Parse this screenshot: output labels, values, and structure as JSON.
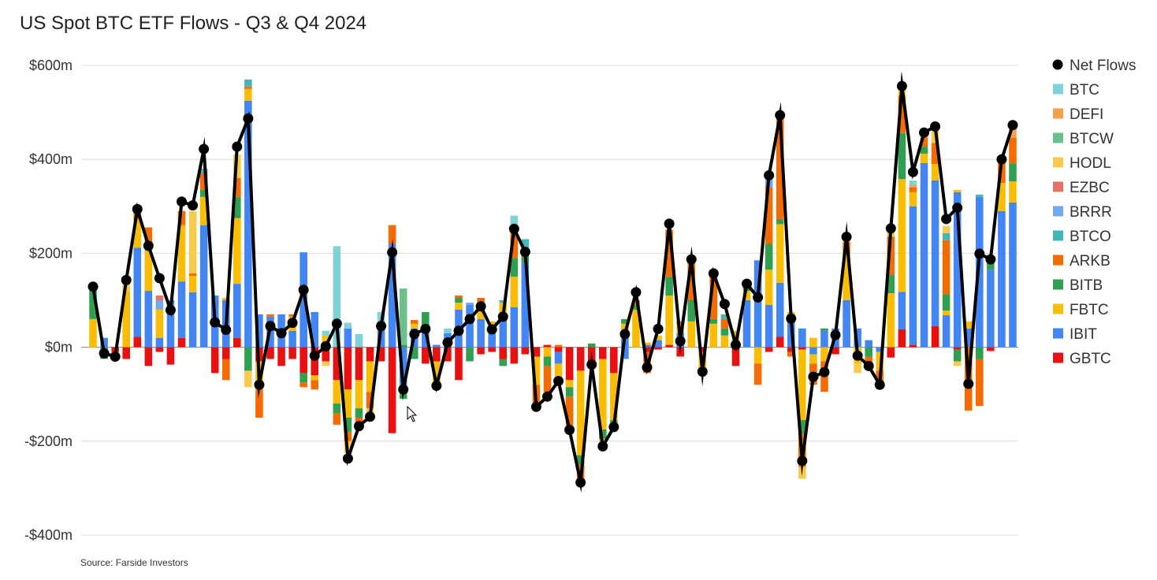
{
  "title": "US Spot BTC ETF Flows - Q3 & Q4 2024",
  "source": "Source: Farside Investors",
  "chart_data": {
    "type": "bar",
    "stacked": true,
    "overlay_line": "Net Flows",
    "ylim": [
      -400,
      600
    ],
    "yticks": [
      {
        "value": 600,
        "label": "$600m"
      },
      {
        "value": 400,
        "label": "$400m"
      },
      {
        "value": 200,
        "label": "$200m"
      },
      {
        "value": 0,
        "label": "$0m"
      },
      {
        "value": -200,
        "label": "-$200m"
      },
      {
        "value": -400,
        "label": "-$400m"
      }
    ],
    "legend_position": "right",
    "grid": true,
    "legend": [
      {
        "name": "Net Flows",
        "color": "#000000",
        "marker": "dot"
      },
      {
        "name": "BTC",
        "color": "#7fd3d6",
        "marker": "square"
      },
      {
        "name": "DEFI",
        "color": "#f3a14a",
        "marker": "square"
      },
      {
        "name": "BTCW",
        "color": "#6cc08b",
        "marker": "square"
      },
      {
        "name": "HODL",
        "color": "#f6ca4e",
        "marker": "square"
      },
      {
        "name": "EZBC",
        "color": "#e57368",
        "marker": "square"
      },
      {
        "name": "BRRR",
        "color": "#74a8ee",
        "marker": "square"
      },
      {
        "name": "BTCO",
        "color": "#43b6b8",
        "marker": "square"
      },
      {
        "name": "ARKB",
        "color": "#f56b00",
        "marker": "square"
      },
      {
        "name": "BITB",
        "color": "#2ea04f",
        "marker": "square"
      },
      {
        "name": "FBTC",
        "color": "#fbbc04",
        "marker": "square"
      },
      {
        "name": "IBIT",
        "color": "#4285f4",
        "marker": "square"
      },
      {
        "name": "GBTC",
        "color": "#ea1010",
        "marker": "square"
      }
    ],
    "days": [
      {
        "net": 129,
        "pos": {
          "BITB": 65,
          "FBTC": 60
        },
        "neg": {}
      },
      {
        "net": -13,
        "pos": {
          "IBIT": 20
        },
        "neg": {
          "BITB": -25
        }
      },
      {
        "net": -20,
        "pos": {},
        "neg": {
          "GBTC": -10,
          "ARKB": -10
        }
      },
      {
        "net": 143,
        "pos": {
          "FBTC": 120,
          "HODL": 30
        },
        "neg": {
          "GBTC": -25
        }
      },
      {
        "net": 294,
        "pos": {
          "GBTC": 22,
          "IBIT": 190,
          "FBTC": 60,
          "ARKB": 20
        },
        "neg": {}
      },
      {
        "net": 216,
        "pos": {
          "IBIT": 120,
          "FBTC": 100,
          "ARKB": 35
        },
        "neg": {
          "GBTC": -40
        }
      },
      {
        "net": 147,
        "pos": {
          "IBIT": 20,
          "FBTC": 60,
          "BRRR": 20,
          "EZBC": 10
        },
        "neg": {
          "GBTC": -10
        }
      },
      {
        "net": 79,
        "pos": {
          "IBIT": 100
        },
        "neg": {
          "GBTC": -37
        }
      },
      {
        "net": 310,
        "pos": {
          "GBTC": 20,
          "IBIT": 120,
          "FBTC": 120,
          "ARKB": 30
        },
        "neg": {}
      },
      {
        "net": 302,
        "pos": {
          "IBIT": 117,
          "FBTC": 35,
          "HODL": 133,
          "ARKB": 5
        },
        "neg": {}
      },
      {
        "net": 422,
        "pos": {
          "IBIT": 260,
          "FBTC": 60,
          "BITB": 15,
          "ARKB": 35,
          "BTCO": 10
        },
        "neg": {}
      },
      {
        "net": 53,
        "pos": {
          "IBIT": 110
        },
        "neg": {
          "GBTC": -55
        }
      },
      {
        "net": 37,
        "pos": {
          "IBIT": 100,
          "FBTC": 5
        },
        "neg": {
          "GBTC": -25,
          "ARKB": -45
        }
      },
      {
        "net": 427,
        "pos": {
          "GBTC": 20,
          "IBIT": 115,
          "FBTC": 140,
          "BITB": 45,
          "ARKB": 40,
          "HODL": 50
        },
        "neg": {}
      },
      {
        "net": 487,
        "pos": {
          "IBIT": 525,
          "FBTC": 25,
          "BTCO": 15,
          "ARKB": 5
        },
        "neg": {
          "BITB": -50,
          "HODL": -35
        }
      },
      {
        "net": -80,
        "pos": {
          "IBIT": 70
        },
        "neg": {
          "GBTC": -30,
          "FBTC": -60,
          "ARKB": -60
        }
      },
      {
        "net": 45,
        "pos": {
          "IBIT": 65,
          "ARKB": 5
        },
        "neg": {
          "GBTC": -25
        }
      },
      {
        "net": 30,
        "pos": {
          "IBIT": 70
        },
        "neg": {
          "GBTC": -40
        }
      },
      {
        "net": 52,
        "pos": {
          "IBIT": 35,
          "FBTC": 30,
          "ARKB": 5
        },
        "neg": {
          "GBTC": -25
        }
      },
      {
        "net": 122,
        "pos": {
          "IBIT": 202
        },
        "neg": {
          "GBTC": -55,
          "ARKB": -10,
          "BITB": -20
        }
      },
      {
        "net": -18,
        "pos": {
          "IBIT": 75
        },
        "neg": {
          "GBTC": -60,
          "ARKB": -20,
          "FBTC": -10
        }
      },
      {
        "net": 2,
        "pos": {
          "FBTC": 25,
          "BTC": 10
        },
        "neg": {
          "GBTC": -30,
          "HODL": -10
        }
      },
      {
        "net": 50,
        "pos": {
          "BTC": 215
        },
        "neg": {
          "GBTC": -70,
          "FBTC": -50,
          "BITB": -20,
          "ARKB": -25
        }
      },
      {
        "net": -237,
        "pos": {
          "IBIT": 40,
          "BTC": 12
        },
        "neg": {
          "GBTC": -90,
          "FBTC": -60,
          "BITB": -30,
          "ARKB": -20,
          "HODL": -25
        }
      },
      {
        "net": -168,
        "pos": {
          "BTC": 28
        },
        "neg": {
          "GBTC": -70,
          "FBTC": -60,
          "BITB": -20,
          "ARKB": -25
        }
      },
      {
        "net": -148,
        "pos": {},
        "neg": {
          "GBTC": -30,
          "FBTC": -65,
          "ARKB": -35,
          "HODL": -20
        }
      },
      {
        "net": 45,
        "pos": {
          "IBIT": 55,
          "BTC": 20
        },
        "neg": {
          "GBTC": -30
        }
      },
      {
        "net": 202,
        "pos": {
          "IBIT": 220,
          "ARKB": 40
        },
        "neg": {
          "GBTC": -183
        }
      },
      {
        "net": -90,
        "pos": {
          "BTCW": 120,
          "BITB": 5
        },
        "neg": {
          "IBIT": -100,
          "BITB": -10
        }
      },
      {
        "net": 28,
        "pos": {
          "IBIT": 40,
          "FBTC": 10,
          "ARKB": 8
        },
        "neg": {
          "BITB": -25
        }
      },
      {
        "net": 39,
        "pos": {
          "IBIT": 45,
          "BITB": 30
        },
        "neg": {
          "GBTC": -35
        }
      },
      {
        "net": -82,
        "pos": {
          "IBIT": 5
        },
        "neg": {
          "GBTC": -30,
          "FBTC": -50
        }
      },
      {
        "net": 10,
        "pos": {
          "IBIT": 30,
          "BTC": 10
        },
        "neg": {
          "GBTC": -30
        }
      },
      {
        "net": 35,
        "pos": {
          "IBIT": 80,
          "FBTC": 15,
          "BITB": 10,
          "ARKB": 5
        },
        "neg": {
          "GBTC": -70
        }
      },
      {
        "net": 60,
        "pos": {
          "IBIT": 90,
          "BRRR": 5
        },
        "neg": {
          "BITB": -30
        }
      },
      {
        "net": 87,
        "pos": {
          "IBIT": 60,
          "FBTC": 30,
          "ARKB": 15
        },
        "neg": {
          "GBTC": -15
        }
      },
      {
        "net": 38,
        "pos": {
          "IBIT": 40,
          "FBTC": 15
        },
        "neg": {
          "GBTC": -10
        }
      },
      {
        "net": 65,
        "pos": {
          "IBIT": 65,
          "FBTC": 30,
          "BTCO": 5
        },
        "neg": {
          "GBTC": -25,
          "BITB": -15
        }
      },
      {
        "net": 252,
        "pos": {
          "IBIT": 85,
          "FBTC": 65,
          "BITB": 40,
          "ARKB": 65,
          "BTC": 25
        },
        "neg": {
          "GBTC": -35
        }
      },
      {
        "net": 203,
        "pos": {
          "IBIT": 180,
          "BITB": 15,
          "ARKB": 10,
          "BTCO": 25
        },
        "neg": {
          "GBTC": -15
        }
      },
      {
        "net": -127,
        "pos": {},
        "neg": {
          "GBTC": -20,
          "FBTC": -60,
          "ARKB": -40
        }
      },
      {
        "net": -105,
        "pos": {
          "GBTC": 5
        },
        "neg": {
          "FBTC": -20,
          "ARKB": -55,
          "BITB": -20
        }
      },
      {
        "net": -72,
        "pos": {
          "ARKB": 5
        },
        "neg": {
          "IBIT": -25,
          "FBTC": -35,
          "GBTC": -10
        }
      },
      {
        "net": -176,
        "pos": {},
        "neg": {
          "GBTC": -70,
          "FBTC": -15,
          "ARKB": -65,
          "BITB": -20
        }
      },
      {
        "net": -288,
        "pos": {},
        "neg": {
          "GBTC": -50,
          "FBTC": -180,
          "BITB": -20,
          "ARKB": -30
        }
      },
      {
        "net": -37,
        "pos": {
          "BITB": 8
        },
        "neg": {
          "GBTC": -30,
          "ARKB": -10
        }
      },
      {
        "net": -211,
        "pos": {},
        "neg": {
          "GBTC": -25,
          "FBTC": -150,
          "BITB": -20,
          "HODL": -20
        }
      },
      {
        "net": -170,
        "pos": {},
        "neg": {
          "GBTC": -55,
          "FBTC": -100,
          "BITB": -20
        }
      },
      {
        "net": 28,
        "pos": {
          "IBIT": 25,
          "FBTC": 25,
          "BITB": 10
        },
        "neg": {
          "IBIT": -25
        }
      },
      {
        "net": 117,
        "pos": {
          "FBTC": 80,
          "BITB": 10,
          "ARKB": 10
        },
        "neg": {}
      },
      {
        "net": -43,
        "pos": {
          "IBIT": 5,
          "FBTC": 5
        },
        "neg": {
          "GBTC": -10,
          "ARKB": -45
        }
      },
      {
        "net": 39,
        "pos": {
          "IBIT": 15,
          "FBTC": 10
        },
        "neg": {
          "GBTC": -5
        }
      },
      {
        "net": 263,
        "pos": {
          "GBTC": 5,
          "FBTC": 105,
          "BITB": 40,
          "ARKB": 100
        },
        "neg": {}
      },
      {
        "net": 13,
        "pos": {
          "IBIT": 30,
          "FBTC": 20,
          "ARKB": 5
        },
        "neg": {
          "GBTC": -20
        }
      },
      {
        "net": 187,
        "pos": {
          "FBTC": 55,
          "BITB": 45,
          "ARKB": 80
        },
        "neg": {}
      },
      {
        "net": -52,
        "pos": {},
        "neg": {
          "GBTC": -10,
          "FBTC": -45
        }
      },
      {
        "net": 157,
        "pos": {
          "FBTC": 50,
          "BITB": 10,
          "ARKB": 100
        },
        "neg": {}
      },
      {
        "net": 92,
        "pos": {
          "FBTC": 25,
          "BITB": 15,
          "ARKB": 20,
          "BTCO": 10
        },
        "neg": {}
      },
      {
        "net": 5,
        "pos": {
          "IBIT": 15,
          "FBTC": 20
        },
        "neg": {
          "GBTC": -40
        }
      },
      {
        "net": 135,
        "pos": {
          "IBIT": 100,
          "FBTC": 20,
          "BITB": 10
        },
        "neg": {}
      },
      {
        "net": 106,
        "pos": {
          "IBIT": 185
        },
        "neg": {
          "FBTC": -35,
          "ARKB": -45
        }
      },
      {
        "net": 366,
        "pos": {
          "IBIT": 90,
          "FBTC": 75,
          "BITB": 55,
          "ARKB": 120,
          "BRRR": 20,
          "BTC": 10
        },
        "neg": {
          "GBTC": -10
        }
      },
      {
        "net": 494,
        "pos": {
          "GBTC": 22,
          "IBIT": 115,
          "FBTC": 125,
          "BITB": 10,
          "ARKB": 220
        },
        "neg": {}
      },
      {
        "net": 61,
        "pos": {
          "IBIT": 60,
          "FBTC": 15
        },
        "neg": {
          "GBTC": -10,
          "ARKB": -10
        }
      },
      {
        "net": -242,
        "pos": {
          "IBIT": 40
        },
        "neg": {
          "GBTC": -5,
          "FBTC": -150,
          "BITB": -30,
          "ARKB": -70,
          "HODL": -25
        }
      },
      {
        "net": -63,
        "pos": {
          "FBTC": 20
        },
        "neg": {
          "IBIT": -15,
          "FBTC": -20,
          "ARKB": -45
        }
      },
      {
        "net": -53,
        "pos": {
          "IBIT": 35,
          "BITB": 5
        },
        "neg": {
          "FBTC": -30,
          "ARKB": -65
        }
      },
      {
        "net": 26,
        "pos": {
          "IBIT": 40
        },
        "neg": {
          "GBTC": -15
        }
      },
      {
        "net": 235,
        "pos": {
          "IBIT": 100,
          "FBTC": 100,
          "ARKB": 25
        },
        "neg": {}
      },
      {
        "net": -18,
        "pos": {
          "IBIT": 40
        },
        "neg": {
          "FBTC": -35,
          "HODL": -20
        }
      },
      {
        "net": -40,
        "pos": {
          "IBIT": 15
        },
        "neg": {
          "BITB": -20,
          "ARKB": -25
        }
      },
      {
        "net": -80,
        "pos": {},
        "neg": {
          "IBIT": -10,
          "FBTC": -40,
          "ARKB": -30
        }
      },
      {
        "net": 253,
        "pos": {
          "FBTC": 115,
          "BITB": 40,
          "ARKB": 80,
          "HODL": 20
        },
        "neg": {
          "GBTC": -22
        }
      },
      {
        "net": 556,
        "pos": {
          "GBTC": 38,
          "IBIT": 80,
          "FBTC": 240,
          "BITB": 98,
          "ARKB": 80,
          "HODL": 20
        },
        "neg": {}
      },
      {
        "net": 373,
        "pos": {
          "GBTC": 5,
          "IBIT": 295,
          "FBTC": 30,
          "ARKB": 10,
          "DEFI": 5,
          "BTC": 10
        },
        "neg": {}
      },
      {
        "net": 457,
        "pos": {
          "IBIT": 392,
          "FBTC": 20,
          "BITB": 15,
          "ARKB": 20
        },
        "neg": {}
      },
      {
        "net": 470,
        "pos": {
          "GBTC": 45,
          "IBIT": 310,
          "FBTC": 35,
          "ARKB": 45,
          "HODL": 30
        },
        "neg": {}
      },
      {
        "net": 273,
        "pos": {
          "IBIT": 68,
          "FBTC": 10,
          "BITB": 35,
          "ARKB": 115,
          "BTCO": 15,
          "HODL": 15
        },
        "neg": {}
      },
      {
        "net": 297,
        "pos": {
          "IBIT": 330,
          "FBTC": 5
        },
        "neg": {
          "GBTC": -5,
          "BITB": -25,
          "HODL": -10
        }
      },
      {
        "net": -78,
        "pos": {
          "IBIT": 40,
          "FBTC": 15
        },
        "neg": {
          "ARKB": -135
        }
      },
      {
        "net": 199,
        "pos": {
          "IBIT": 320,
          "BTCO": 5
        },
        "neg": {
          "BITB": -25,
          "ARKB": -100
        }
      },
      {
        "net": 187,
        "pos": {
          "IBIT": 165,
          "BITB": 15
        },
        "neg": {
          "GBTC": -8
        }
      },
      {
        "net": 400,
        "pos": {
          "IBIT": 290,
          "FBTC": 60,
          "ARKB": 50
        },
        "neg": {}
      },
      {
        "net": 473,
        "pos": {
          "IBIT": 308,
          "FBTC": 45,
          "BITB": 38,
          "ARKB": 55,
          "DEFI": 20
        },
        "neg": {}
      }
    ]
  }
}
